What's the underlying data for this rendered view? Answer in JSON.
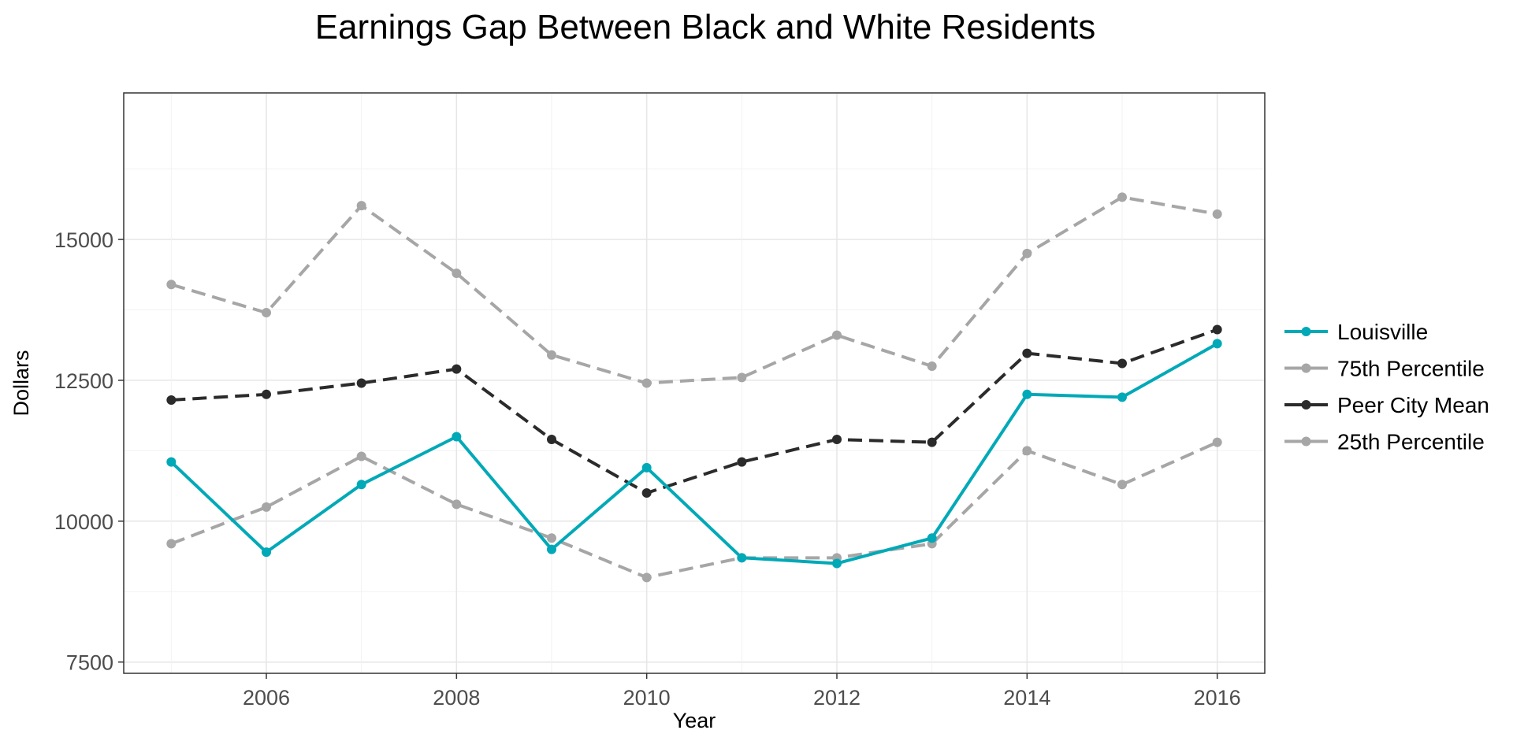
{
  "chart_data": {
    "type": "line",
    "title": "Earnings Gap Between Black and White Residents",
    "xlabel": "Year",
    "ylabel": "Dollars",
    "x": [
      2005,
      2006,
      2007,
      2008,
      2009,
      2010,
      2011,
      2012,
      2013,
      2014,
      2015,
      2016
    ],
    "xlim": [
      2004.5,
      2016.5
    ],
    "ylim": [
      7300,
      17600
    ],
    "xticks": [
      2006,
      2008,
      2010,
      2012,
      2014,
      2016
    ],
    "yticks": [
      7500,
      10000,
      12500,
      15000
    ],
    "grid": true,
    "legend_position": "right",
    "series": [
      {
        "name": "Louisville",
        "color": "#00a9b7",
        "style": "solid",
        "values": [
          11050,
          9450,
          10650,
          11500,
          9500,
          10950,
          9350,
          9250,
          9700,
          12250,
          12200,
          13150
        ]
      },
      {
        "name": "75th Percentile",
        "color": "#a6a6a6",
        "style": "dashed",
        "values": [
          14200,
          13700,
          15600,
          14400,
          12950,
          12450,
          12550,
          13300,
          12750,
          14750,
          15750,
          15450
        ]
      },
      {
        "name": "Peer City Mean",
        "color": "#2b2b2b",
        "style": "dashed",
        "values": [
          12150,
          12250,
          12450,
          12700,
          11450,
          10500,
          11050,
          11450,
          11400,
          12980,
          12800,
          13400
        ]
      },
      {
        "name": "25th Percentile",
        "color": "#a6a6a6",
        "style": "dashed",
        "values": [
          9600,
          10250,
          11150,
          10300,
          9700,
          9000,
          9350,
          9350,
          9600,
          11250,
          10650,
          11400
        ]
      }
    ]
  }
}
